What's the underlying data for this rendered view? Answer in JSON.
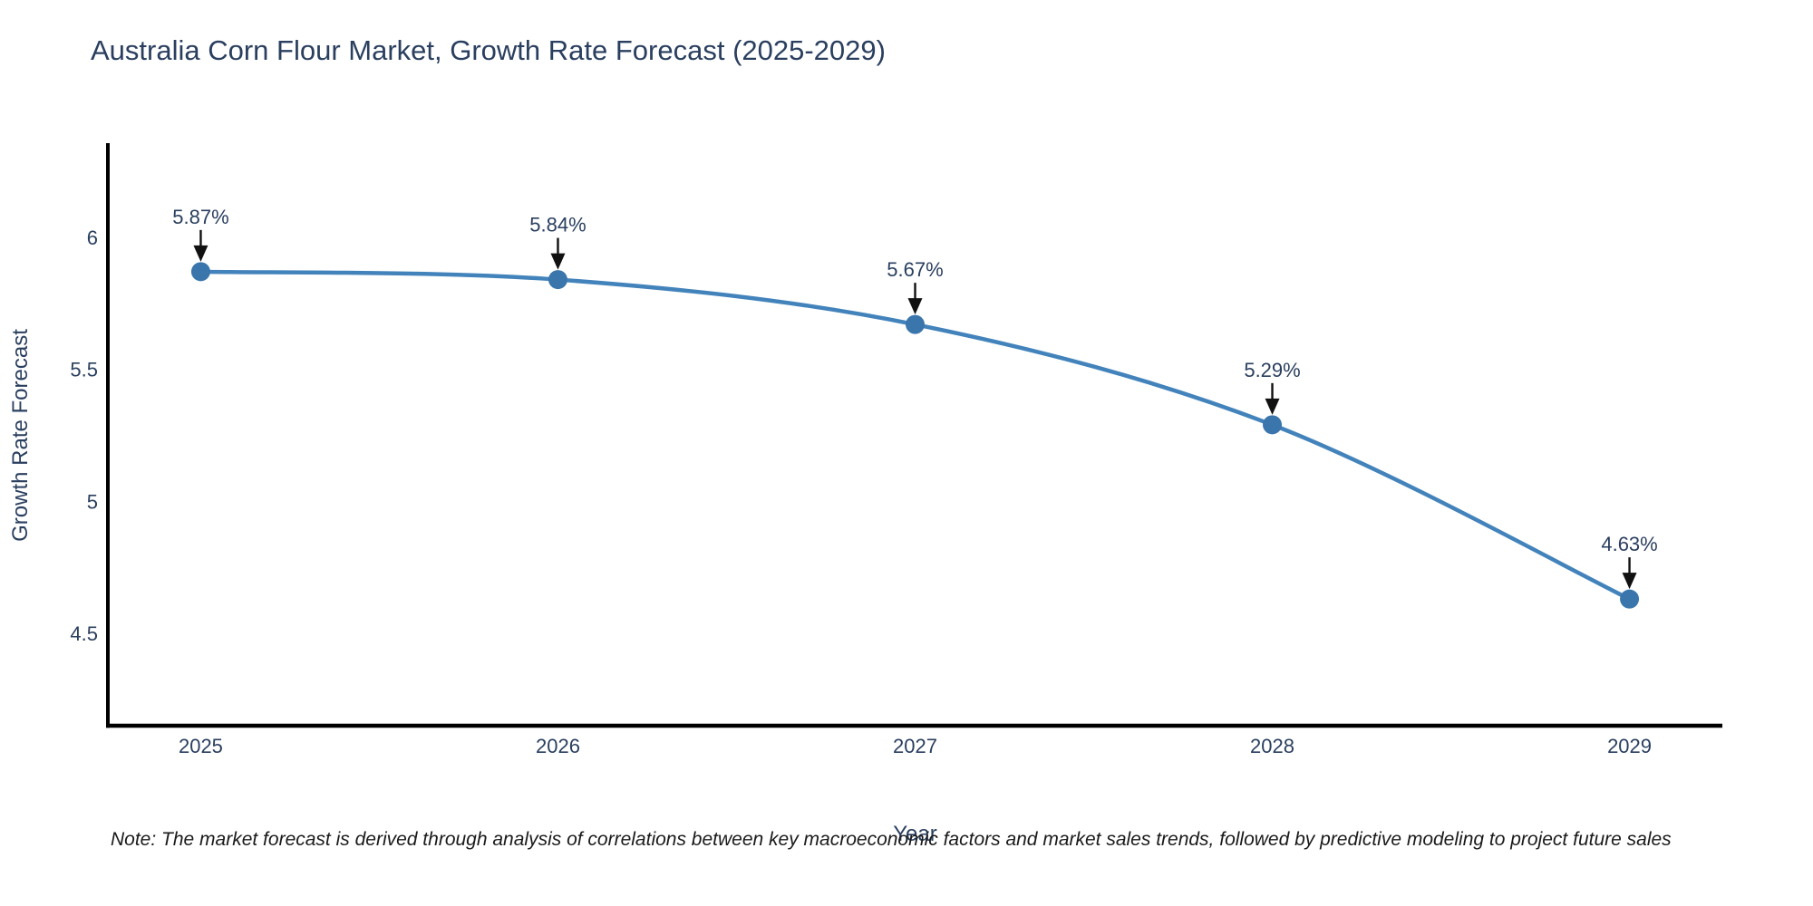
{
  "chart_data": {
    "type": "line",
    "title": "Australia Corn Flour Market, Growth Rate Forecast (2025-2029)",
    "xlabel": "Year",
    "ylabel": "Growth Rate Forecast",
    "x": [
      2025,
      2026,
      2027,
      2028,
      2029
    ],
    "x_tick_labels": [
      "2025",
      "2026",
      "2027",
      "2028",
      "2029"
    ],
    "series": [
      {
        "name": "Growth Rate Forecast",
        "values": [
          5.87,
          5.84,
          5.67,
          5.29,
          4.63
        ]
      }
    ],
    "point_labels": [
      "5.87%",
      "5.84%",
      "5.67%",
      "5.29%",
      "4.63%"
    ],
    "yticks": [
      4.5,
      5,
      5.5,
      6
    ],
    "ytick_labels": [
      "4.5",
      "5",
      "5.5",
      "6"
    ],
    "xlim": [
      2024.74,
      2029.26
    ],
    "ylim": [
      4.15,
      6.35
    ],
    "grid": false,
    "legend_position": "none",
    "line_shape": "spline",
    "colors": {
      "line": "#4383bb",
      "marker": "#3a75ab",
      "axis_line": "#000000",
      "tick_text": "#2a3f5f",
      "annotation_text": "#2a3f5f",
      "annotation_arrow": "#111111",
      "background": "#ffffff"
    },
    "note": "Note: The market forecast is derived through analysis of correlations between key macroeconomic factors and market sales trends, followed by predictive modeling to project future sales"
  }
}
